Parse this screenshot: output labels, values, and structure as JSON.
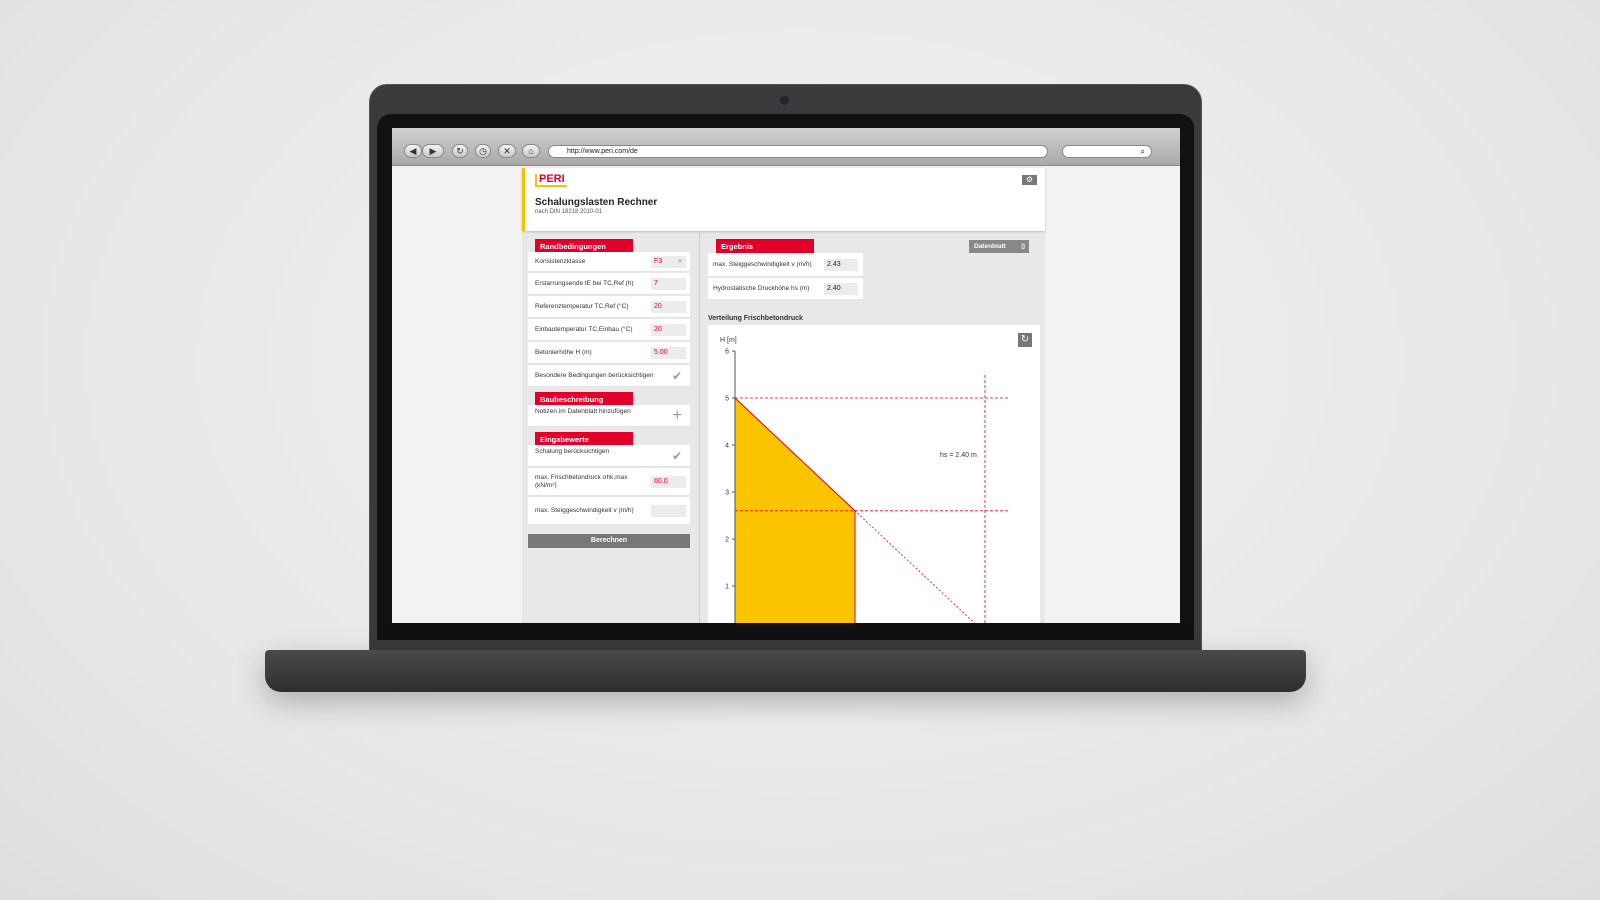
{
  "browser": {
    "url": "http://www.peri.com/de"
  },
  "header": {
    "logo": "PERI",
    "title": "Schalungslasten Rechner",
    "subtitle": "nach DIN 18218:2010-01"
  },
  "left": {
    "randbedingungen": {
      "title": "Randbedingungen",
      "rows": [
        {
          "label": "Konsistenzklasse",
          "value": "F3"
        },
        {
          "label": "Erstarrungsende tE bei TC,Ref (h)",
          "value": "7"
        },
        {
          "label": "Referenztemperatur TC,Ref (°C)",
          "value": "20"
        },
        {
          "label": "Einbautemperatur TC,Einbau (°C)",
          "value": "20"
        },
        {
          "label": "Betonierhöhe H (m)",
          "value": "5.00"
        },
        {
          "label": "Besondere Bedingungen berücksichtigen"
        }
      ]
    },
    "baubeschreibung": {
      "title": "Baubeschreibung",
      "rows": [
        {
          "label": "Notizen im Datenblatt hinzufügen"
        }
      ]
    },
    "eingabewerte": {
      "title": "Eingabewerte",
      "rows": [
        {
          "label": "Schalung berücksichtigen"
        },
        {
          "label": "max. Frischbetondruck σhk,max (kN/m²)",
          "value": "60.0"
        },
        {
          "label": "max. Steiggeschwindigkeit v (m/h)",
          "value": ""
        }
      ]
    },
    "calculate": "Berechnen"
  },
  "right": {
    "ergebnis": {
      "title": "Ergebnis",
      "rows": [
        {
          "label": "max. Steiggeschwindigkeit v (m/h)",
          "value": "2.43"
        },
        {
          "label": "Hydrostatische Druckhöhe hs (m)",
          "value": "2.40"
        }
      ]
    },
    "datenblatt": "Datenblatt",
    "chart_title": "Verteilung Frischbetondruck"
  },
  "chart_data": {
    "type": "area",
    "ylabel": "H [m]",
    "yticks": [
      1,
      2,
      3,
      4,
      5,
      6
    ],
    "ylim": [
      0,
      6
    ],
    "fill_color": "#fbc400",
    "line_color": "#e2002b",
    "pressure_profile": [
      {
        "p": 0,
        "h": 5
      },
      {
        "p": 60,
        "h": 2.6
      },
      {
        "p": 60,
        "h": 0
      }
    ],
    "hydrostatic_line": [
      {
        "p": 0,
        "h": 5
      },
      {
        "p": 125,
        "h": 0
      }
    ],
    "guides": {
      "h": [
        5,
        2.6
      ],
      "p": [
        125
      ]
    },
    "annotation": "hs = 2.40 m"
  }
}
